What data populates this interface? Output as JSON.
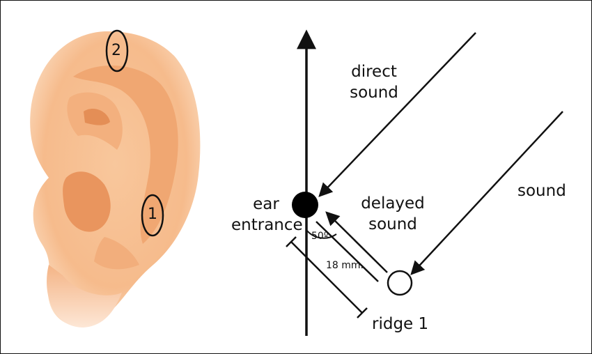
{
  "ear": {
    "markers": [
      "2",
      "1"
    ]
  },
  "labels": {
    "direct_sound": [
      "direct",
      "sound"
    ],
    "sound": "sound",
    "delayed_sound": [
      "delayed",
      "sound"
    ],
    "ear_entrance": [
      "ear",
      "entrance"
    ],
    "ridge": "ridge 1",
    "angle": "50º",
    "distance": "18 mm."
  },
  "colors": {
    "skin_light": "#fbd9b6",
    "skin_mid": "#f6b98a",
    "skin_dark": "#e8935b",
    "ink": "#111111"
  }
}
